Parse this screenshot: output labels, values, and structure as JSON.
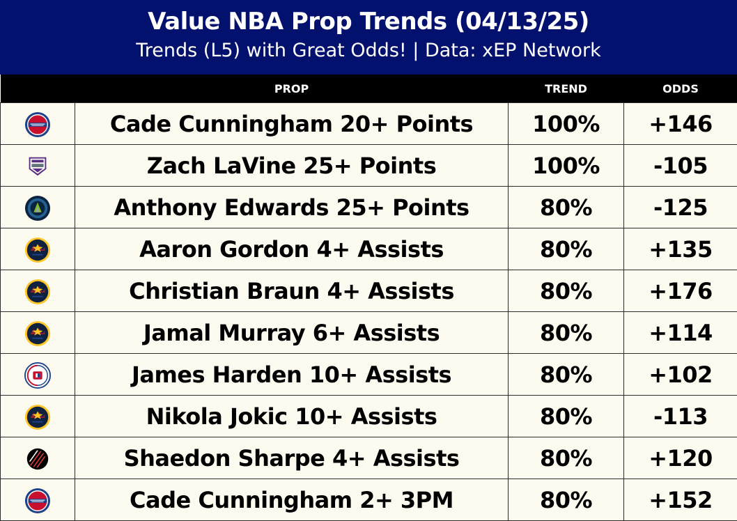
{
  "header": {
    "title": "Value NBA Prop Trends (04/13/25)",
    "subtitle": "Trends (L5) with Great Odds! | Data: xEP Network"
  },
  "columns": {
    "logo": "",
    "prop": "PROP",
    "trend": "TREND",
    "odds": "ODDS"
  },
  "colors": {
    "header_bg": "#03116e",
    "row_bg": "#fdfbf0",
    "column_header_bg": "#000000"
  },
  "rows": [
    {
      "team_icon": "pistons-logo-icon",
      "prop": "Cade Cunningham 20+ Points",
      "trend": "100%",
      "odds": "+146"
    },
    {
      "team_icon": "kings-logo-icon",
      "prop": "Zach LaVine 25+ Points",
      "trend": "100%",
      "odds": "-105"
    },
    {
      "team_icon": "timberwolves-logo-icon",
      "prop": "Anthony Edwards 25+ Points",
      "trend": "80%",
      "odds": "-125"
    },
    {
      "team_icon": "nuggets-logo-icon",
      "prop": "Aaron Gordon 4+ Assists",
      "trend": "80%",
      "odds": "+135"
    },
    {
      "team_icon": "nuggets-logo-icon",
      "prop": "Christian Braun 4+ Assists",
      "trend": "80%",
      "odds": "+176"
    },
    {
      "team_icon": "nuggets-logo-icon",
      "prop": "Jamal Murray 6+ Assists",
      "trend": "80%",
      "odds": "+114"
    },
    {
      "team_icon": "clippers-logo-icon",
      "prop": "James Harden 10+ Assists",
      "trend": "80%",
      "odds": "+102"
    },
    {
      "team_icon": "nuggets-logo-icon",
      "prop": "Nikola Jokic 10+ Assists",
      "trend": "80%",
      "odds": "-113"
    },
    {
      "team_icon": "trail-blazers-logo-icon",
      "prop": "Shaedon Sharpe 4+ Assists",
      "trend": "80%",
      "odds": "+120"
    },
    {
      "team_icon": "pistons-logo-icon",
      "prop": "Cade Cunningham 2+ 3PM",
      "trend": "80%",
      "odds": "+152"
    }
  ]
}
